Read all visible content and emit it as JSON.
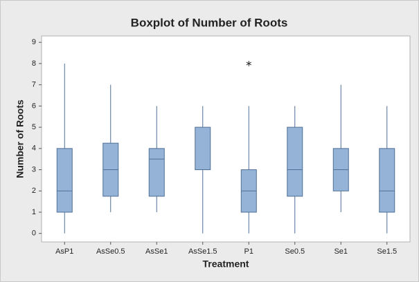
{
  "chart_data": {
    "type": "box",
    "title": "Boxplot of Number of Roots",
    "x_label": "Treatment",
    "y_label": "Number of Roots",
    "categories": [
      "AsP1",
      "AsSe0.5",
      "AsSe1",
      "AsSe1.5",
      "P1",
      "Se0.5",
      "Se1",
      "Se1.5"
    ],
    "boxes": [
      {
        "min": 0,
        "q1": 1,
        "median": 2,
        "q3": 4,
        "max": 8,
        "outliers": []
      },
      {
        "min": 1,
        "q1": 1.75,
        "median": 3,
        "q3": 4.25,
        "max": 7,
        "outliers": []
      },
      {
        "min": 1,
        "q1": 1.75,
        "median": 3.5,
        "q3": 4,
        "max": 6,
        "outliers": []
      },
      {
        "min": 0,
        "q1": 3,
        "median": 3,
        "q3": 5,
        "max": 6,
        "outliers": []
      },
      {
        "min": 0,
        "q1": 1,
        "median": 2,
        "q3": 3,
        "max": 6,
        "outliers": [
          8
        ]
      },
      {
        "min": 0,
        "q1": 1.75,
        "median": 3,
        "q3": 5,
        "max": 6,
        "outliers": []
      },
      {
        "min": 1,
        "q1": 2,
        "median": 3,
        "q3": 4,
        "max": 7,
        "outliers": []
      },
      {
        "min": 0,
        "q1": 1,
        "median": 2,
        "q3": 4,
        "max": 6,
        "outliers": []
      }
    ],
    "color": "#95b3d7",
    "ylim": [
      -0.4,
      9.3
    ],
    "yticks": [
      0,
      1,
      2,
      3,
      4,
      5,
      6,
      7,
      8,
      9
    ]
  }
}
